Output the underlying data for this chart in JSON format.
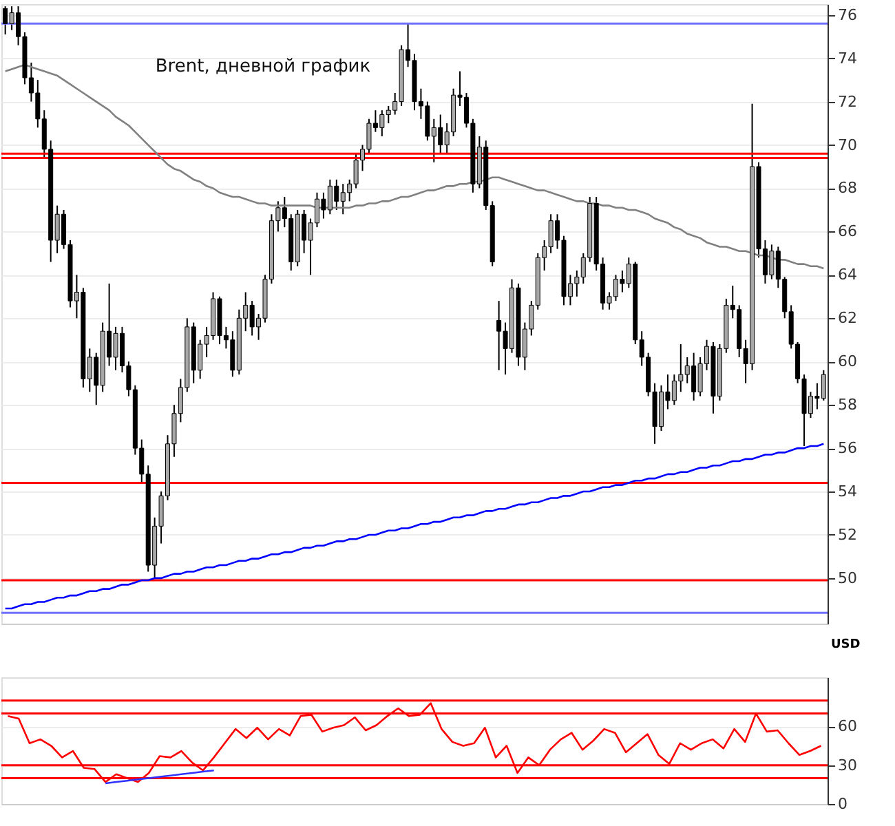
{
  "chart_data": [
    {
      "type": "candlestick",
      "title": "Brent, дневной график",
      "ylabel": "USD",
      "color": "#000000",
      "categories": [
        null,
        null,
        null,
        null,
        null,
        null,
        null,
        null,
        null,
        null,
        null,
        null,
        null,
        null,
        null,
        null,
        null,
        null,
        null,
        null,
        null,
        null,
        null,
        null,
        null,
        null,
        null,
        null,
        null,
        null,
        null,
        null,
        null,
        null,
        null,
        null,
        null,
        null,
        null,
        null,
        null,
        null,
        null,
        null,
        null,
        null,
        null,
        null,
        null,
        null,
        null,
        null,
        null,
        null,
        null,
        null,
        null,
        null,
        null,
        null,
        null,
        null,
        null,
        null,
        null,
        null,
        null,
        null,
        null,
        null,
        null,
        null,
        null,
        null,
        null,
        null,
        null,
        null,
        null,
        null,
        null,
        null,
        null,
        null,
        null,
        null,
        null,
        null,
        null,
        null,
        null,
        null,
        null,
        null,
        null,
        null,
        null,
        null,
        null,
        null,
        null,
        null,
        null,
        null,
        null,
        null,
        null,
        null,
        null,
        null,
        null,
        null,
        null,
        null,
        null,
        null,
        null,
        null,
        null,
        null,
        null,
        null,
        null,
        null,
        null,
        null,
        null
      ],
      "ohlc": [
        [
          76.3,
          76.4,
          75.1,
          75.6
        ],
        [
          75.6,
          76.4,
          75.3,
          76.1
        ],
        [
          76.1,
          76.4,
          74.6,
          75.0
        ],
        [
          75.0,
          75.2,
          72.8,
          73.1
        ],
        [
          73.1,
          73.8,
          72.0,
          72.4
        ],
        [
          72.4,
          73.0,
          70.8,
          71.2
        ],
        [
          71.2,
          71.6,
          69.4,
          69.8
        ],
        [
          69.8,
          70.2,
          64.6,
          65.6
        ],
        [
          65.6,
          67.2,
          65.0,
          66.8
        ],
        [
          66.8,
          67.0,
          65.2,
          65.4
        ],
        [
          65.4,
          65.6,
          62.5,
          62.8
        ],
        [
          62.8,
          64.0,
          62.0,
          63.2
        ],
        [
          63.2,
          63.4,
          58.8,
          59.2
        ],
        [
          59.2,
          60.6,
          58.6,
          60.2
        ],
        [
          60.2,
          60.4,
          58.0,
          58.9
        ],
        [
          58.9,
          61.8,
          58.6,
          61.4
        ],
        [
          61.4,
          63.6,
          59.8,
          60.2
        ],
        [
          60.2,
          61.6,
          59.6,
          61.3
        ],
        [
          61.3,
          61.6,
          59.5,
          59.8
        ],
        [
          59.8,
          60.0,
          58.4,
          58.7
        ],
        [
          58.7,
          58.9,
          55.7,
          56.0
        ],
        [
          56.0,
          56.4,
          54.4,
          54.8
        ],
        [
          54.8,
          55.2,
          50.3,
          50.6
        ],
        [
          50.6,
          52.8,
          50.0,
          52.4
        ],
        [
          52.4,
          54.0,
          51.6,
          53.8
        ],
        [
          53.8,
          56.6,
          53.6,
          56.2
        ],
        [
          56.2,
          58.0,
          55.6,
          57.6
        ],
        [
          57.6,
          59.2,
          57.2,
          58.8
        ],
        [
          58.8,
          62.0,
          58.6,
          61.6
        ],
        [
          61.6,
          61.8,
          59.0,
          59.6
        ],
        [
          59.6,
          61.0,
          59.2,
          60.8
        ],
        [
          60.8,
          61.6,
          60.2,
          61.2
        ],
        [
          61.2,
          63.2,
          61.0,
          62.9
        ],
        [
          62.9,
          63.0,
          60.8,
          61.2
        ],
        [
          61.2,
          61.6,
          60.6,
          61.0
        ],
        [
          61.0,
          61.4,
          59.3,
          59.6
        ],
        [
          59.6,
          62.4,
          59.4,
          62.0
        ],
        [
          62.0,
          63.2,
          61.4,
          62.6
        ],
        [
          62.6,
          62.8,
          61.2,
          61.6
        ],
        [
          61.6,
          62.2,
          61.0,
          62.0
        ],
        [
          62.0,
          64.0,
          61.8,
          63.8
        ],
        [
          63.8,
          66.8,
          63.6,
          66.5
        ],
        [
          66.5,
          67.4,
          66.0,
          67.1
        ],
        [
          67.1,
          67.6,
          66.2,
          66.6
        ],
        [
          66.6,
          66.8,
          64.2,
          64.6
        ],
        [
          64.6,
          67.0,
          64.4,
          66.8
        ],
        [
          66.8,
          67.0,
          65.0,
          65.6
        ],
        [
          65.6,
          66.6,
          64.0,
          66.4
        ],
        [
          66.4,
          67.8,
          66.2,
          67.5
        ],
        [
          67.5,
          67.8,
          66.6,
          67.0
        ],
        [
          67.0,
          68.4,
          66.8,
          68.1
        ],
        [
          68.1,
          68.4,
          67.0,
          67.4
        ],
        [
          67.4,
          68.2,
          66.8,
          67.8
        ],
        [
          67.8,
          68.4,
          67.4,
          68.2
        ],
        [
          68.2,
          69.6,
          68.0,
          69.3
        ],
        [
          69.3,
          70.0,
          68.8,
          69.8
        ],
        [
          69.8,
          71.2,
          69.6,
          71.0
        ],
        [
          71.0,
          71.6,
          70.6,
          70.8
        ],
        [
          70.8,
          71.6,
          70.4,
          71.4
        ],
        [
          71.4,
          71.8,
          71.0,
          71.6
        ],
        [
          71.6,
          72.4,
          71.4,
          72.0
        ],
        [
          72.0,
          74.6,
          71.8,
          74.4
        ],
        [
          74.4,
          75.6,
          73.6,
          73.9
        ],
        [
          73.9,
          74.2,
          71.6,
          72.0
        ],
        [
          72.0,
          72.6,
          71.2,
          71.8
        ],
        [
          71.8,
          72.0,
          70.2,
          70.4
        ],
        [
          70.4,
          71.2,
          69.2,
          70.8
        ],
        [
          70.8,
          71.4,
          69.6,
          70.0
        ],
        [
          70.0,
          71.0,
          69.6,
          70.6
        ],
        [
          70.6,
          72.6,
          70.4,
          72.3
        ],
        [
          72.3,
          73.4,
          71.8,
          72.2
        ],
        [
          72.2,
          72.4,
          70.8,
          71.0
        ],
        [
          71.0,
          71.2,
          67.8,
          68.2
        ],
        [
          68.2,
          70.4,
          68.0,
          69.9
        ],
        [
          69.9,
          70.2,
          67.0,
          67.2
        ],
        [
          67.2,
          67.4,
          64.4,
          64.6
        ],
        [
          61.9,
          62.8,
          59.6,
          61.4
        ],
        [
          61.4,
          61.8,
          59.4,
          60.6
        ],
        [
          60.6,
          63.8,
          60.4,
          63.4
        ],
        [
          63.4,
          63.6,
          59.8,
          60.2
        ],
        [
          60.2,
          61.8,
          59.6,
          61.5
        ],
        [
          61.5,
          62.8,
          61.2,
          62.6
        ],
        [
          62.6,
          65.0,
          62.4,
          64.8
        ],
        [
          64.8,
          65.6,
          64.2,
          65.3
        ],
        [
          65.3,
          66.8,
          65.0,
          66.5
        ],
        [
          66.5,
          66.8,
          65.2,
          65.6
        ],
        [
          65.6,
          65.8,
          62.6,
          63.0
        ],
        [
          63.0,
          64.0,
          62.6,
          63.6
        ],
        [
          63.6,
          64.2,
          63.0,
          63.9
        ],
        [
          63.9,
          65.0,
          63.6,
          64.8
        ],
        [
          64.8,
          67.6,
          64.6,
          67.3
        ],
        [
          67.3,
          67.6,
          64.2,
          64.5
        ],
        [
          64.5,
          64.8,
          62.4,
          62.7
        ],
        [
          62.7,
          63.2,
          62.4,
          63.0
        ],
        [
          63.0,
          64.0,
          62.8,
          63.8
        ],
        [
          63.8,
          64.2,
          63.2,
          63.6
        ],
        [
          63.6,
          64.8,
          63.4,
          64.5
        ],
        [
          64.5,
          64.6,
          60.8,
          61.0
        ],
        [
          61.0,
          61.4,
          59.8,
          60.2
        ],
        [
          60.2,
          60.4,
          58.4,
          58.6
        ],
        [
          58.6,
          59.0,
          56.2,
          57.0
        ],
        [
          57.0,
          58.9,
          56.8,
          58.6
        ],
        [
          58.6,
          59.4,
          57.8,
          58.2
        ],
        [
          58.2,
          59.4,
          58.0,
          59.1
        ],
        [
          59.1,
          60.8,
          58.6,
          59.4
        ],
        [
          59.4,
          60.2,
          59.0,
          59.8
        ],
        [
          59.8,
          60.4,
          58.2,
          58.6
        ],
        [
          58.6,
          60.2,
          58.4,
          59.9
        ],
        [
          59.9,
          61.0,
          59.6,
          60.7
        ],
        [
          60.7,
          60.9,
          57.6,
          58.4
        ],
        [
          58.4,
          60.8,
          58.2,
          60.6
        ],
        [
          60.6,
          62.9,
          60.4,
          62.6
        ],
        [
          62.6,
          63.5,
          62.0,
          62.4
        ],
        [
          62.4,
          62.6,
          60.2,
          60.6
        ],
        [
          60.6,
          61.0,
          59.0,
          59.9
        ],
        [
          59.9,
          71.9,
          59.6,
          69.0
        ],
        [
          69.0,
          69.2,
          64.8,
          65.2
        ],
        [
          65.2,
          65.6,
          63.6,
          64.0
        ],
        [
          64.0,
          65.4,
          63.8,
          65.1
        ],
        [
          65.1,
          65.3,
          63.4,
          63.8
        ],
        [
          63.8,
          63.9,
          62.0,
          62.3
        ],
        [
          62.3,
          62.6,
          60.6,
          60.8
        ],
        [
          60.8,
          60.9,
          59.0,
          59.2
        ],
        [
          59.2,
          59.4,
          56.1,
          57.6
        ],
        [
          57.6,
          58.6,
          57.4,
          58.4
        ],
        [
          58.4,
          59.0,
          57.8,
          58.3
        ],
        [
          58.3,
          59.6,
          58.2,
          59.4
        ]
      ],
      "series": [
        {
          "type": "line",
          "color": "#808080",
          "values": [
            73.4,
            73.5,
            73.6,
            73.7,
            73.6,
            73.5,
            73.4,
            73.3,
            73.2,
            73.0,
            72.8,
            72.6,
            72.4,
            72.2,
            72.0,
            71.8,
            71.6,
            71.3,
            71.1,
            70.9,
            70.6,
            70.3,
            70.0,
            69.7,
            69.4,
            69.1,
            68.9,
            68.8,
            68.6,
            68.4,
            68.3,
            68.1,
            68.0,
            67.8,
            67.7,
            67.6,
            67.6,
            67.5,
            67.4,
            67.3,
            67.3,
            67.2,
            67.2,
            67.2,
            67.2,
            67.2,
            67.2,
            67.2,
            67.1,
            67.1,
            67.1,
            67.1,
            67.1,
            67.1,
            67.2,
            67.2,
            67.3,
            67.3,
            67.4,
            67.4,
            67.5,
            67.6,
            67.6,
            67.7,
            67.8,
            67.9,
            67.9,
            68.0,
            68.1,
            68.1,
            68.2,
            68.2,
            68.3,
            68.3,
            68.4,
            68.5,
            68.5,
            68.4,
            68.3,
            68.2,
            68.1,
            68.0,
            67.9,
            67.9,
            67.8,
            67.7,
            67.6,
            67.5,
            67.4,
            67.4,
            67.3,
            67.3,
            67.2,
            67.2,
            67.1,
            67.1,
            67.0,
            67.0,
            66.9,
            66.8,
            66.6,
            66.5,
            66.4,
            66.2,
            66.1,
            65.9,
            65.8,
            65.7,
            65.5,
            65.4,
            65.3,
            65.3,
            65.2,
            65.1,
            65.1,
            65.0,
            64.9,
            64.9,
            64.8,
            64.7,
            64.7,
            64.6,
            64.5,
            64.5,
            64.4,
            64.4,
            64.3
          ]
        },
        {
          "type": "line",
          "color": "#0000ff",
          "values": [
            48.6,
            48.6,
            48.7,
            48.8,
            48.8,
            48.9,
            48.9,
            49.0,
            49.1,
            49.1,
            49.2,
            49.2,
            49.3,
            49.4,
            49.4,
            49.5,
            49.5,
            49.6,
            49.7,
            49.7,
            49.8,
            49.9,
            49.9,
            50.0,
            50.0,
            50.1,
            50.2,
            50.2,
            50.3,
            50.3,
            50.4,
            50.5,
            50.5,
            50.6,
            50.6,
            50.7,
            50.8,
            50.8,
            50.9,
            50.9,
            51.0,
            51.1,
            51.1,
            51.2,
            51.2,
            51.3,
            51.4,
            51.4,
            51.5,
            51.5,
            51.6,
            51.7,
            51.7,
            51.8,
            51.8,
            51.9,
            52.0,
            52.0,
            52.1,
            52.2,
            52.2,
            52.3,
            52.3,
            52.4,
            52.5,
            52.5,
            52.6,
            52.6,
            52.7,
            52.8,
            52.8,
            52.9,
            52.9,
            53.0,
            53.1,
            53.1,
            53.2,
            53.2,
            53.3,
            53.4,
            53.4,
            53.5,
            53.5,
            53.6,
            53.7,
            53.7,
            53.8,
            53.8,
            53.9,
            54.0,
            54.0,
            54.1,
            54.2,
            54.2,
            54.3,
            54.3,
            54.4,
            54.5,
            54.5,
            54.6,
            54.6,
            54.7,
            54.8,
            54.8,
            54.9,
            54.9,
            55.0,
            55.1,
            55.1,
            55.2,
            55.2,
            55.3,
            55.4,
            55.4,
            55.5,
            55.5,
            55.6,
            55.7,
            55.7,
            55.8,
            55.8,
            55.9,
            56.0,
            56.0,
            56.1,
            56.1,
            56.2
          ]
        }
      ],
      "ref_lines": [
        {
          "axis": "y",
          "value": 75.6,
          "color": "#7070ff"
        },
        {
          "axis": "y",
          "value": 48.4,
          "color": "#7070ff"
        },
        {
          "axis": "y",
          "value": 69.6,
          "color": "#ff0000"
        },
        {
          "axis": "y",
          "value": 69.4,
          "color": "#ff0000"
        },
        {
          "axis": "y",
          "value": 54.4,
          "color": "#ff0000"
        },
        {
          "axis": "y",
          "value": 49.9,
          "color": "#ff0000"
        }
      ],
      "ylim": [
        47.9,
        76.5
      ],
      "yticks": [
        50,
        52,
        54,
        56,
        58,
        60,
        62,
        64,
        66,
        68,
        70,
        72,
        74,
        76
      ],
      "grid": "y",
      "tick_labels": "y"
    },
    {
      "type": "line",
      "categories": [
        null,
        null,
        null,
        null,
        null,
        null,
        null,
        null,
        null,
        null,
        null,
        null,
        null,
        null,
        null,
        null,
        null,
        null,
        null,
        null,
        null,
        null,
        null,
        null,
        null,
        null,
        null,
        null,
        null,
        null,
        null,
        null,
        null,
        null,
        null,
        null,
        null,
        null,
        null,
        null,
        null,
        null,
        null,
        null,
        null,
        null,
        null,
        null,
        null,
        null,
        null,
        null,
        null,
        null,
        null,
        null,
        null,
        null,
        null,
        null,
        null,
        null,
        null,
        null,
        null,
        null,
        null,
        null,
        null,
        null,
        null,
        null,
        null,
        null,
        null,
        null
      ],
      "series": [
        {
          "color": "#ff0000",
          "values": [
            68,
            66,
            47,
            50,
            45,
            36,
            41,
            28,
            27,
            17,
            23,
            20,
            17,
            24,
            37,
            36,
            41,
            32,
            26,
            36,
            47,
            58,
            51,
            59,
            50,
            58,
            53,
            68,
            69,
            56,
            59,
            61,
            67,
            57,
            61,
            68,
            74,
            68,
            69,
            78,
            58,
            48,
            45,
            47,
            59,
            36,
            45,
            24,
            36,
            30,
            42,
            50,
            55,
            42,
            49,
            58,
            55,
            40,
            47,
            54,
            38,
            31,
            47,
            42,
            47,
            50,
            43,
            58,
            48,
            70,
            56,
            57,
            47,
            38,
            41,
            45
          ]
        },
        {
          "color": "#3030ff",
          "values": [
            null,
            null,
            null,
            null,
            null,
            null,
            null,
            null,
            null,
            16,
            17,
            18,
            19,
            20,
            21,
            22,
            23,
            24,
            25,
            26,
            null,
            null,
            null,
            null,
            null,
            null,
            null,
            null,
            null,
            null,
            null,
            null,
            null,
            null,
            null,
            null,
            null,
            null,
            null,
            null,
            null,
            null,
            null,
            null,
            null,
            null,
            null,
            null,
            null,
            null,
            null,
            null,
            null,
            null,
            null,
            null,
            null,
            null,
            null,
            null,
            null,
            null,
            null,
            null,
            null,
            null,
            null,
            null,
            null,
            null,
            null,
            null,
            null,
            null,
            null,
            null
          ]
        }
      ],
      "ref_lines": [
        {
          "axis": "y",
          "value": 80,
          "color": "#ff0000"
        },
        {
          "axis": "y",
          "value": 70,
          "color": "#ff0000"
        },
        {
          "axis": "y",
          "value": 30,
          "color": "#ff0000"
        },
        {
          "axis": "y",
          "value": 20,
          "color": "#ff0000"
        }
      ],
      "ylim": [
        0,
        98
      ],
      "yticks": [
        0,
        30,
        60
      ],
      "grid": "y",
      "tick_labels": "y"
    }
  ]
}
